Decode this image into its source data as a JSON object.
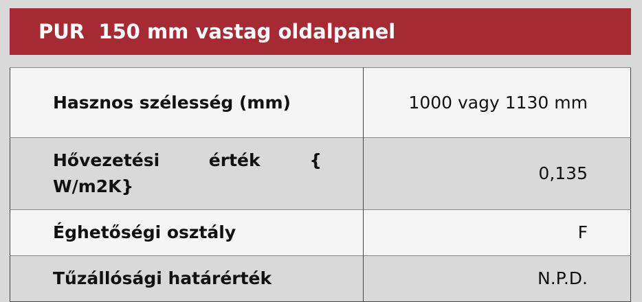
{
  "header": {
    "title": "PUR  150 mm vastag oldalpanel",
    "background_color": "#a52a33"
  },
  "rows": [
    {
      "label": "Hasznos szélesség (mm)",
      "value": "1000 vagy 1130 mm"
    },
    {
      "label": "Hővezetési érték { W/m2K}",
      "value": "0,135"
    },
    {
      "label": "Éghetőségi osztály",
      "value": "F"
    },
    {
      "label": "Tűzállósági határérték",
      "value": "N.P.D."
    }
  ]
}
